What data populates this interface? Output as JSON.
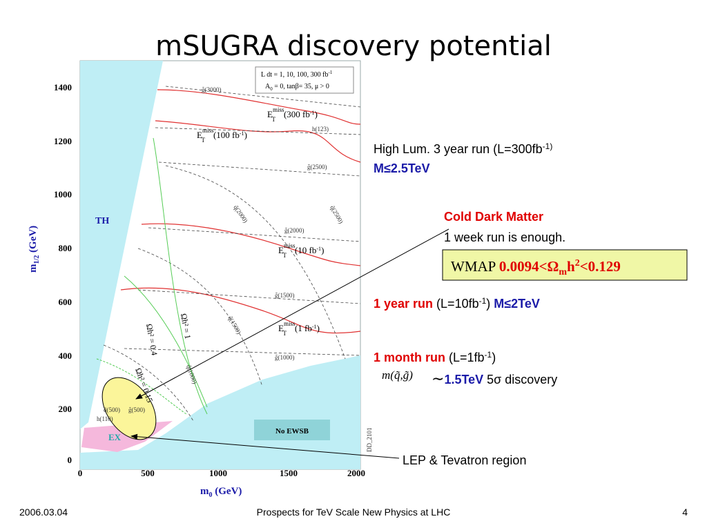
{
  "title": "mSUGRA discovery potential",
  "plot": {
    "y_label": {
      "main": "m",
      "sub": "1/2",
      "unit": " (GeV)"
    },
    "x_label": {
      "main": "m",
      "sub": "0",
      "unit": " (GeV)"
    },
    "yticks": [
      "1400",
      "1200",
      "1000",
      "800",
      "600",
      "400",
      "200",
      "0"
    ],
    "xticks": [
      "0",
      "500",
      "1000",
      "1500",
      "2000"
    ],
    "legend": {
      "line1": "L dt = 1, 10, 100, 300 fb",
      "line1_sup": "-1",
      "line2": "A",
      "line2_sub": "0",
      "line2_rest": " = 0, tanβ= 35, μ > 0"
    },
    "regions": {
      "th": "TH",
      "ex": "EX",
      "no_ewsb": "No EWSB"
    },
    "emiss": [
      {
        "base": "E",
        "sup": "miss",
        "sub": "T",
        "lumi": "(300 fb",
        "lumi_sup": "-1",
        "close": ")"
      },
      {
        "base": "E",
        "sup": "miss",
        "sub": "T",
        "lumi": "(100 fb",
        "lumi_sup": "-1",
        "close": ")"
      },
      {
        "base": "E",
        "sup": "miss",
        "sub": "T",
        "lumi": "(10 fb",
        "lumi_sup": "-1",
        "close": ")"
      },
      {
        "base": "E",
        "sup": "miss",
        "sub": "T",
        "lumi": "(1 fb",
        "lumi_sup": "-1",
        "close": ")"
      }
    ],
    "curve_labels": [
      "g̃(3000)",
      "h(123)",
      "g̃(2500)",
      "q̃(2500)",
      "q̃(2000)",
      "g̃(2000)",
      "g̃(1500)",
      "q̃(1500)",
      "g̃(1000)",
      "q̃(1000)",
      "g̃(500)",
      "q̃(500)",
      "h(110)"
    ],
    "omega_labels": [
      "Ωh² = 0.4",
      "Ωh² = 1",
      "Ωh² = 0.15"
    ],
    "code": "DD_2101"
  },
  "annotations": {
    "high_lum": {
      "text": "High Lum. 3 year run (L=300fb",
      "sup": "-1)",
      "reach": "M≤2.5TeV"
    },
    "cdm": {
      "title": "Cold Dark Matter",
      "text": "1 week run is enough."
    },
    "wmap": {
      "label": "WMAP ",
      "range": "0.0094<Ω",
      "sub": "m",
      "h": "h",
      "sup": "2",
      "end": "<0.129"
    },
    "year": {
      "run": "1 year run",
      "lumi": " (L=10fb",
      "sup": "-1",
      "close": ")",
      "reach": " M≤2TeV"
    },
    "month": {
      "run": "1 month run",
      "lumi": " (L=1fb",
      "sup": "-1",
      "close": ")",
      "mass": "m(q̃,g̃)",
      "approx": "∼",
      "reach": "1.5TeV",
      "disc": " 5σ discovery"
    },
    "lep": "LEP & Tevatron region"
  },
  "footer": {
    "date": "2006.03.04",
    "talk": "Prospects for TeV Scale New Physics at LHC",
    "page": "4"
  }
}
